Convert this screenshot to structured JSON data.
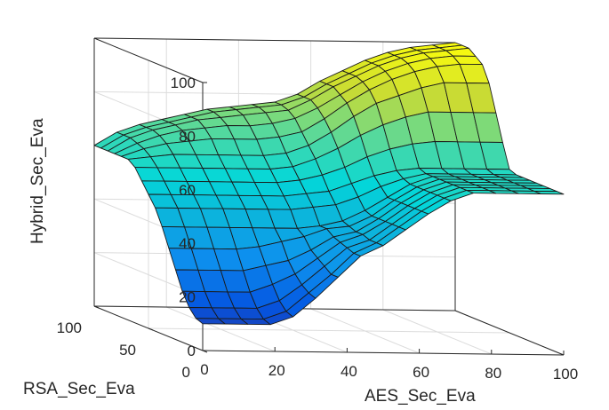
{
  "chart_data": {
    "type": "surface",
    "xlabel": "AES_Sec_Eva",
    "ylabel": "RSA_Sec_Eva",
    "zlabel": "Hybrid_Sec_Eva",
    "xlim": [
      0,
      100
    ],
    "ylim": [
      0,
      100
    ],
    "zlim": [
      0,
      100
    ],
    "x_ticks": [
      "0",
      "20",
      "40",
      "60",
      "80",
      "100"
    ],
    "y_ticks": [
      "0",
      "50",
      "100"
    ],
    "z_ticks": [
      "0",
      "20",
      "40",
      "60",
      "80",
      "100"
    ],
    "grid": true,
    "colormap": "parula",
    "x": [
      0,
      6.25,
      12.5,
      18.75,
      25,
      31.25,
      37.5,
      43.75,
      50,
      56.25,
      62.5,
      68.75,
      75,
      81.25,
      87.5,
      93.75,
      100
    ],
    "y": [
      0,
      6.25,
      12.5,
      18.75,
      25,
      31.25,
      37.5,
      43.75,
      50,
      56.25,
      62.5,
      68.75,
      75,
      81.25,
      87.5,
      93.75,
      100
    ],
    "z": [
      [
        10,
        10,
        10,
        10,
        13,
        20,
        28,
        36,
        40,
        46,
        52,
        57,
        60,
        60,
        60,
        60,
        60
      ],
      [
        11,
        11,
        11,
        11,
        14,
        21,
        28,
        36,
        40,
        46,
        52,
        57,
        60,
        60,
        60,
        60,
        60
      ],
      [
        14,
        14,
        14,
        14,
        17,
        23,
        30,
        37,
        40,
        46,
        52,
        57,
        60,
        60,
        60,
        60,
        60
      ],
      [
        19,
        19,
        19,
        19,
        22,
        26,
        32,
        38,
        41,
        46,
        52,
        57,
        60,
        60,
        60,
        60,
        60
      ],
      [
        26,
        26,
        26,
        26,
        28,
        30,
        34,
        39,
        41,
        46,
        52,
        57,
        60,
        60,
        60,
        60,
        60
      ],
      [
        33,
        33,
        33,
        33,
        34,
        36,
        38,
        41,
        42,
        46,
        52,
        57,
        60,
        60,
        60,
        60,
        60
      ],
      [
        40,
        40,
        40,
        40,
        40,
        40,
        40,
        41,
        43,
        47,
        52,
        57,
        60,
        60,
        60,
        60,
        60
      ],
      [
        46,
        46,
        46,
        46,
        46,
        46,
        46,
        47,
        48,
        51,
        55,
        58,
        60,
        60,
        60,
        60,
        60
      ],
      [
        50,
        50,
        50,
        50,
        50,
        50,
        50,
        51,
        52,
        55,
        58,
        60,
        61,
        61,
        61,
        61,
        61
      ],
      [
        54,
        54,
        54,
        54,
        54,
        54,
        54,
        55,
        57,
        60,
        64,
        67,
        69,
        70,
        70,
        70,
        70
      ],
      [
        58,
        58,
        58,
        58,
        58,
        58,
        58,
        59,
        62,
        66,
        71,
        75,
        78,
        80,
        80,
        80,
        80
      ],
      [
        60,
        61,
        62,
        62,
        62,
        62,
        62,
        63,
        66,
        71,
        77,
        82,
        85,
        88,
        90,
        90,
        90
      ],
      [
        60,
        63,
        65,
        66,
        67,
        67,
        67,
        68,
        70,
        75,
        81,
        86,
        90,
        93,
        95,
        96,
        96
      ],
      [
        60,
        64,
        67,
        69,
        70,
        71,
        71,
        72,
        74,
        78,
        83,
        88,
        92,
        95,
        97,
        98,
        98
      ],
      [
        60,
        65,
        68,
        70,
        72,
        73,
        74,
        75,
        76,
        80,
        85,
        89,
        93,
        96,
        98,
        99,
        100
      ],
      [
        60,
        65,
        68,
        70,
        72,
        74,
        75,
        76,
        77,
        80,
        85,
        89,
        93,
        96,
        98,
        99,
        100
      ],
      [
        60,
        65,
        68,
        70,
        72,
        74,
        75,
        76,
        77,
        80,
        85,
        89,
        93,
        96,
        98,
        99,
        100
      ]
    ]
  }
}
